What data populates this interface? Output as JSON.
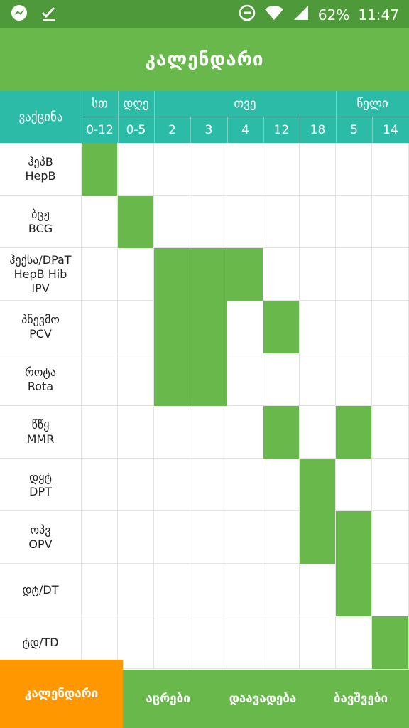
{
  "status_bar": {
    "battery": "62%",
    "time": "11:47",
    "icons": [
      "messenger-icon",
      "check-icon",
      "dnd-icon",
      "wifi-icon",
      "signal-icon"
    ]
  },
  "app_bar": {
    "title": "კალენდარი"
  },
  "table": {
    "vaccine_header": "ვაქცინა",
    "groups": [
      {
        "label": "სთ"
      },
      {
        "label": "დღე"
      },
      {
        "label": "თვე"
      },
      {
        "label": "წელი"
      }
    ],
    "ages": [
      "0-12",
      "0-5",
      "2",
      "3",
      "4",
      "12",
      "18",
      "5",
      "14"
    ],
    "rows": [
      {
        "line1": "ჰეპB",
        "line2": "HepB",
        "line3": "",
        "active": [
          0
        ]
      },
      {
        "line1": "ბცჟ",
        "line2": "BCG",
        "line3": "",
        "active": [
          1
        ]
      },
      {
        "line1": "ჰექსა/DPaT",
        "line2": "HepB Hib",
        "line3": "IPV",
        "active": [
          2,
          3,
          4
        ]
      },
      {
        "line1": "პნევმო",
        "line2": "PCV",
        "line3": "",
        "active": [
          2,
          3,
          5
        ]
      },
      {
        "line1": "როტა",
        "line2": "Rota",
        "line3": "",
        "active": [
          2,
          3
        ]
      },
      {
        "line1": "წწყ",
        "line2": "MMR",
        "line3": "",
        "active": [
          5,
          7
        ]
      },
      {
        "line1": "დყტ",
        "line2": "DPT",
        "line3": "",
        "active": [
          6
        ]
      },
      {
        "line1": "ოპვ",
        "line2": "OPV",
        "line3": "",
        "active": [
          6,
          7
        ]
      },
      {
        "line1": "დტ/DT",
        "line2": "",
        "line3": "",
        "active": [
          7
        ]
      },
      {
        "line1": "ტდ/TD",
        "line2": "",
        "line3": "",
        "active": [
          8
        ]
      }
    ]
  },
  "bottom_nav": {
    "items": [
      {
        "label": "კალენდარი",
        "active": true
      },
      {
        "label": "აცრები",
        "active": false
      },
      {
        "label": "დაავადება",
        "active": false
      },
      {
        "label": "ბავშვები",
        "active": false
      }
    ]
  },
  "colors": {
    "green": "#68b84b",
    "teal": "#2cbba6",
    "orange": "#ff9800",
    "status": "#4e9a3b"
  }
}
